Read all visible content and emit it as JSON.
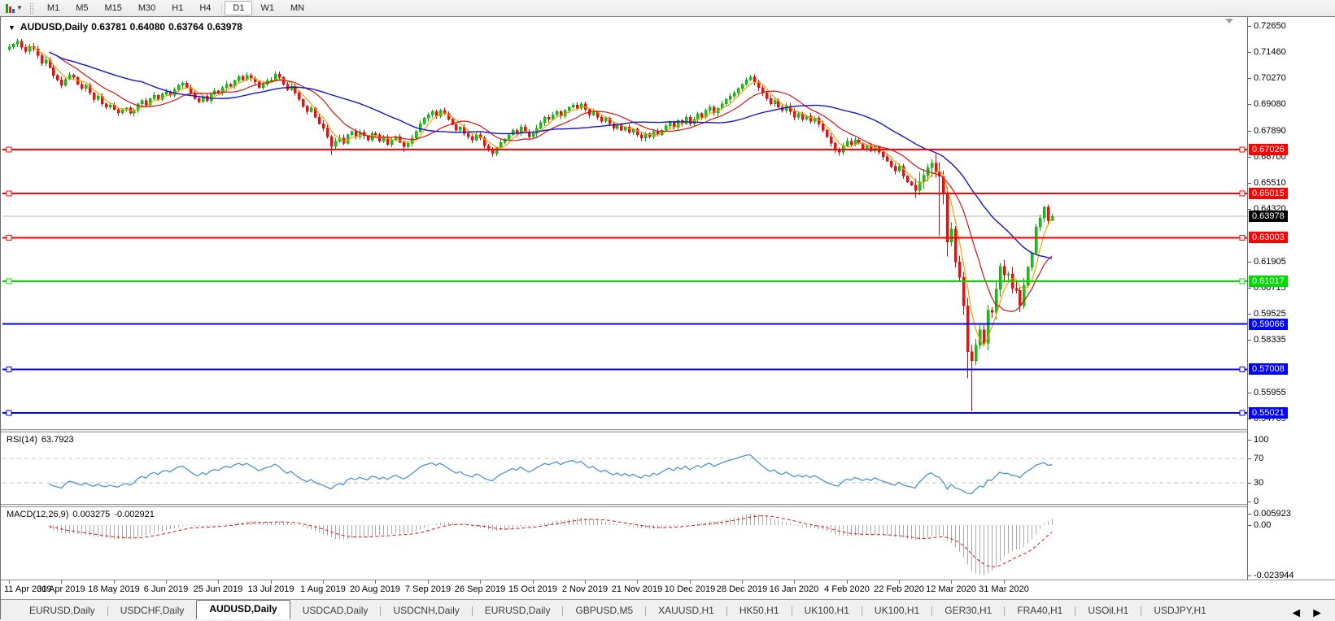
{
  "toolbar": {
    "timeframes": [
      {
        "label": "M1",
        "active": false
      },
      {
        "label": "M5",
        "active": false
      },
      {
        "label": "M15",
        "active": false
      },
      {
        "label": "M30",
        "active": false
      },
      {
        "label": "H1",
        "active": false
      },
      {
        "label": "H4",
        "active": false
      },
      {
        "label": "D1",
        "active": true
      },
      {
        "label": "W1",
        "active": false
      },
      {
        "label": "MN",
        "active": false
      }
    ]
  },
  "header": {
    "collapse_icon": "▼",
    "symbol": "AUDUSD,Daily",
    "open": "0.63781",
    "high": "0.64080",
    "low": "0.63764",
    "close": "0.63978"
  },
  "price_axis": {
    "ticks": [
      {
        "v": 0.7265,
        "label": "0.72650"
      },
      {
        "v": 0.7146,
        "label": "0.71460"
      },
      {
        "v": 0.7027,
        "label": "0.70270"
      },
      {
        "v": 0.6908,
        "label": "0.69080"
      },
      {
        "v": 0.6789,
        "label": "0.67890"
      },
      {
        "v": 0.667,
        "label": "0.66700"
      },
      {
        "v": 0.6551,
        "label": "0.65510"
      },
      {
        "v": 0.6432,
        "label": "0.64320"
      },
      {
        "v": 0.61905,
        "label": "0.61905"
      },
      {
        "v": 0.60715,
        "label": "0.60715"
      },
      {
        "v": 0.59525,
        "label": "0.59525"
      },
      {
        "v": 0.58335,
        "label": "0.58335"
      },
      {
        "v": 0.55955,
        "label": "0.55955"
      },
      {
        "v": 0.54765,
        "label": "0.54765"
      }
    ]
  },
  "current_price": {
    "v": 0.63978,
    "label": "0.63978",
    "line_color": "#b4b4b4",
    "chip_bg": "#000000"
  },
  "hlines": [
    {
      "v": 0.67026,
      "label": "0.67026",
      "color": "#ff0000",
      "handles": true
    },
    {
      "v": 0.65015,
      "label": "0.65015",
      "color": "#ff0000",
      "handles": true
    },
    {
      "v": 0.63003,
      "label": "0.63003",
      "color": "#ff0000",
      "handles": true
    },
    {
      "v": 0.61017,
      "label": "0.61017",
      "color": "#00dc00",
      "handles": true
    },
    {
      "v": 0.59066,
      "label": "0.59066",
      "color": "#0000ff",
      "handles": false
    },
    {
      "v": 0.57008,
      "label": "0.57008",
      "color": "#0000ff",
      "handles": true
    },
    {
      "v": 0.55021,
      "label": "0.55021",
      "color": "#0000ff",
      "handles": true
    }
  ],
  "chart_data": {
    "type": "candlestick",
    "symbol": "AUDUSD",
    "timeframe": "Daily",
    "view": {
      "price_top": 0.73058,
      "price_bottom": 0.54276
    },
    "closes": [
      0.717,
      0.7182,
      0.7195,
      0.7168,
      0.715,
      0.7172,
      0.716,
      0.713,
      0.7095,
      0.711,
      0.7075,
      0.704,
      0.702,
      0.6995,
      0.7022,
      0.7042,
      0.703,
      0.7,
      0.698,
      0.6995,
      0.696,
      0.693,
      0.6945,
      0.691,
      0.6895,
      0.6905,
      0.6885,
      0.687,
      0.6882,
      0.6892,
      0.6868,
      0.688,
      0.691,
      0.6925,
      0.6905,
      0.6935,
      0.695,
      0.693,
      0.6955,
      0.6965,
      0.695,
      0.6975,
      0.6995,
      0.7005,
      0.6985,
      0.696,
      0.6935,
      0.692,
      0.6945,
      0.6925,
      0.6955,
      0.697,
      0.696,
      0.6985,
      0.7,
      0.699,
      0.7015,
      0.7035,
      0.702,
      0.704,
      0.7025,
      0.701,
      0.6985,
      0.7,
      0.7015,
      0.702,
      0.7045,
      0.703,
      0.7,
      0.6975,
      0.699,
      0.696,
      0.693,
      0.69,
      0.6875,
      0.689,
      0.685,
      0.682,
      0.68,
      0.676,
      0.6715,
      0.674,
      0.6755,
      0.673,
      0.677,
      0.6785,
      0.676,
      0.678,
      0.6765,
      0.6745,
      0.6775,
      0.677,
      0.674,
      0.6755,
      0.6725,
      0.6745,
      0.676,
      0.6735,
      0.6715,
      0.673,
      0.6755,
      0.6785,
      0.682,
      0.6845,
      0.686,
      0.6875,
      0.6855,
      0.688,
      0.6865,
      0.684,
      0.6815,
      0.679,
      0.6805,
      0.6775,
      0.676,
      0.6745,
      0.677,
      0.6755,
      0.672,
      0.67,
      0.6685,
      0.671,
      0.6735,
      0.675,
      0.677,
      0.679,
      0.6775,
      0.6805,
      0.6785,
      0.676,
      0.6775,
      0.68,
      0.6825,
      0.685,
      0.684,
      0.686,
      0.6875,
      0.6855,
      0.688,
      0.6895,
      0.6905,
      0.689,
      0.691,
      0.6885,
      0.686,
      0.6875,
      0.685,
      0.683,
      0.6845,
      0.682,
      0.68,
      0.6815,
      0.679,
      0.6805,
      0.678,
      0.6795,
      0.677,
      0.6755,
      0.6775,
      0.676,
      0.6785,
      0.677,
      0.679,
      0.681,
      0.6825,
      0.6805,
      0.6835,
      0.682,
      0.685,
      0.682,
      0.684,
      0.6865,
      0.685,
      0.688,
      0.6895,
      0.687,
      0.689,
      0.691,
      0.693,
      0.6945,
      0.696,
      0.698,
      0.7,
      0.702,
      0.7032,
      0.701,
      0.6985,
      0.696,
      0.6935,
      0.691,
      0.6925,
      0.6895,
      0.688,
      0.69,
      0.6875,
      0.685,
      0.6865,
      0.684,
      0.6855,
      0.683,
      0.6845,
      0.682,
      0.679,
      0.676,
      0.673,
      0.67,
      0.669,
      0.672,
      0.674,
      0.6725,
      0.6745,
      0.673,
      0.6705,
      0.672,
      0.6695,
      0.6715,
      0.669,
      0.667,
      0.665,
      0.6625,
      0.6605,
      0.6625,
      0.658,
      0.6555,
      0.654,
      0.6515,
      0.6555,
      0.6585,
      0.662,
      0.664,
      0.66,
      0.658,
      0.65,
      0.628,
      0.634,
      0.619,
      0.612,
      0.599,
      0.578,
      0.574,
      0.581,
      0.588,
      0.582,
      0.597,
      0.596,
      0.6065,
      0.617,
      0.613,
      0.6135,
      0.607,
      0.606,
      0.599,
      0.6085,
      0.6165,
      0.623,
      0.635,
      0.639,
      0.644,
      0.6378,
      0.6398
    ],
    "wick_overrides": {
      "2": {
        "h": 0.7207
      },
      "80": {
        "l": 0.6677
      },
      "98": {
        "l": 0.669
      },
      "120": {
        "l": 0.667
      },
      "184": {
        "h": 0.7042
      },
      "231": {
        "l": 0.631
      },
      "233": {
        "l": 0.6215
      },
      "238": {
        "l": 0.566
      },
      "239": {
        "l": 0.551
      },
      "257": {
        "h": 0.6445
      },
      "259": {
        "l": 0.63764,
        "h": 0.6408
      }
    },
    "wick_profile": [
      {
        "to": 224,
        "w": 0.0016
      },
      {
        "to": 239,
        "w": 0.005
      },
      {
        "to": 252,
        "w": 0.0035
      },
      {
        "to": 299,
        "w": 0.0022
      }
    ],
    "moving_averages": [
      {
        "period": 5,
        "color": "#efa200",
        "width": 1.2
      },
      {
        "period": 13,
        "color": "#d01414",
        "width": 1.2
      },
      {
        "period": 34,
        "color": "#1414c8",
        "width": 1.4
      }
    ],
    "bull": {
      "fill": "#19c119",
      "stroke": "#0da00d"
    },
    "bear": {
      "fill": "#e61414",
      "stroke": "#c20c0c"
    }
  },
  "rsi": {
    "name": "RSI(14)",
    "value": "63.7923",
    "period": 14,
    "color": "#4a94d4",
    "axis": [
      {
        "v": 100,
        "label": "100",
        "dashed": false
      },
      {
        "v": 70,
        "label": "70",
        "dashed": true
      },
      {
        "v": 30,
        "label": "30",
        "dashed": true
      },
      {
        "v": 0,
        "label": "0",
        "dashed": false
      }
    ]
  },
  "macd": {
    "name": "MACD(12,26,9)",
    "value_main": "0.003275",
    "value_signal": "-0.002921",
    "fast": 12,
    "slow": 26,
    "signal": 9,
    "axis_max": "0.005923",
    "axis_zero": "0.00",
    "axis_min": "-0.023944",
    "hist_color": "#a9a9a9",
    "signal_color": "#e01414"
  },
  "date_axis": {
    "labels": [
      "11 Apr 2019",
      "30 Apr 2019",
      "18 May 2019",
      "6 Jun 2019",
      "25 Jun 2019",
      "13 Jul 2019",
      "1 Aug 2019",
      "20 Aug 2019",
      "7 Sep 2019",
      "26 Sep 2019",
      "15 Oct 2019",
      "2 Nov 2019",
      "21 Nov 2019",
      "10 Dec 2019",
      "28 Dec 2019",
      "16 Jan 2020",
      "4 Feb 2020",
      "22 Feb 2020",
      "12 Mar 2020",
      "31 Mar 2020"
    ]
  },
  "tabs": {
    "items": [
      {
        "label": "EURUSD,Daily",
        "active": false
      },
      {
        "label": "USDCHF,Daily",
        "active": false
      },
      {
        "label": "AUDUSD,Daily",
        "active": true
      },
      {
        "label": "USDCAD,Daily",
        "active": false
      },
      {
        "label": "USDCNH,Daily",
        "active": false
      },
      {
        "label": "EURUSD,Daily",
        "active": false
      },
      {
        "label": "GBPUSD,M5",
        "active": false
      },
      {
        "label": "XAUUSD,H1",
        "active": false
      },
      {
        "label": "HK50,H1",
        "active": false
      },
      {
        "label": "UK100,H1",
        "active": false
      },
      {
        "label": "UK100,H1",
        "active": false
      },
      {
        "label": "GER30,H1",
        "active": false
      },
      {
        "label": "FRA40,H1",
        "active": false
      },
      {
        "label": "USOil,H1",
        "active": false
      },
      {
        "label": "USDJPY,H1",
        "active": false
      }
    ],
    "scroll_prev": "◄",
    "scroll_next": "►"
  }
}
